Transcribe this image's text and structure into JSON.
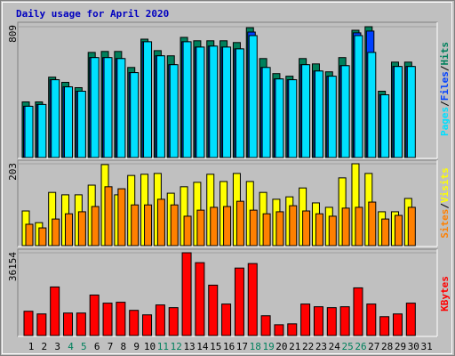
{
  "chart_data": [
    {
      "type": "bar",
      "title": "Daily usage for April 2020",
      "ylim": [
        0,
        809
      ],
      "yticks": [
        809
      ],
      "legend_separator": "/",
      "series": [
        {
          "name": "Hits",
          "color": "#00805c",
          "values": [
            344,
            344,
            497,
            465,
            432,
            650,
            656,
            656,
            557,
            732,
            661,
            629,
            743,
            722,
            722,
            722,
            711,
            803,
            612,
            519,
            503,
            612,
            579,
            530,
            618,
            787,
            809,
            410,
            590,
            590,
            null
          ]
        },
        {
          "name": "Files",
          "color": "#0040ff",
          "values": [
            317,
            328,
            481,
            437,
            410,
            618,
            618,
            612,
            525,
            716,
            629,
            574,
            716,
            683,
            689,
            683,
            672,
            776,
            557,
            486,
            481,
            574,
            535,
            503,
            568,
            771,
            782,
            388,
            563,
            563,
            null
          ]
        },
        {
          "name": "Pages",
          "color": "#00e0ff",
          "values": [
            317,
            328,
            481,
            437,
            410,
            618,
            618,
            612,
            525,
            716,
            629,
            574,
            716,
            683,
            689,
            683,
            672,
            754,
            557,
            486,
            481,
            574,
            535,
            503,
            568,
            754,
            650,
            388,
            563,
            563,
            null
          ]
        }
      ]
    },
    {
      "type": "bar",
      "ylim": [
        0,
        203
      ],
      "yticks": [
        203
      ],
      "legend_separator": "/",
      "series": [
        {
          "name": "Visits",
          "color": "#ffff00",
          "values": [
            86,
            57,
            132,
            126,
            126,
            150,
            201,
            126,
            174,
            177,
            179,
            130,
            146,
            157,
            177,
            159,
            179,
            159,
            132,
            115,
            121,
            143,
            106,
            95,
            168,
            203,
            179,
            84,
            84,
            117,
            null
          ]
        },
        {
          "name": "Sites",
          "color": "#ff8000",
          "values": [
            53,
            44,
            66,
            79,
            84,
            97,
            146,
            141,
            101,
            101,
            115,
            101,
            73,
            88,
            95,
            97,
            110,
            88,
            79,
            84,
            99,
            86,
            79,
            73,
            93,
            95,
            108,
            66,
            75,
            95,
            null
          ]
        }
      ]
    },
    {
      "type": "bar",
      "ylim": [
        0,
        36154
      ],
      "yticks": [
        36154
      ],
      "categories": [
        "1",
        "2",
        "3",
        "4",
        "5",
        "6",
        "7",
        "8",
        "9",
        "10",
        "11",
        "12",
        "13",
        "14",
        "15",
        "16",
        "17",
        "18",
        "19",
        "20",
        "21",
        "22",
        "23",
        "24",
        "25",
        "26",
        "27",
        "28",
        "29",
        "30",
        "31"
      ],
      "category_colors": [
        "#000",
        "#000",
        "#000",
        "#00805c",
        "#00805c",
        "#000",
        "#000",
        "#000",
        "#000",
        "#000",
        "#00805c",
        "#00805c",
        "#000",
        "#000",
        "#000",
        "#000",
        "#000",
        "#00805c",
        "#00805c",
        "#000",
        "#000",
        "#000",
        "#000",
        "#000",
        "#00805c",
        "#00805c",
        "#000",
        "#000",
        "#000",
        "#000",
        "#000"
      ],
      "series": [
        {
          "name": "KBytes",
          "color": "#ff0000",
          "values": [
            10610,
            9432,
            21221,
            9825,
            9825,
            17684,
            14147,
            14540,
            11003,
            9039,
            13361,
            12182,
            36154,
            31832,
            22007,
            13754,
            29474,
            31439,
            8646,
            4716,
            5109,
            13754,
            12575,
            12182,
            12575,
            20828,
            13754,
            8253,
            9432,
            14147,
            null
          ]
        }
      ]
    }
  ]
}
